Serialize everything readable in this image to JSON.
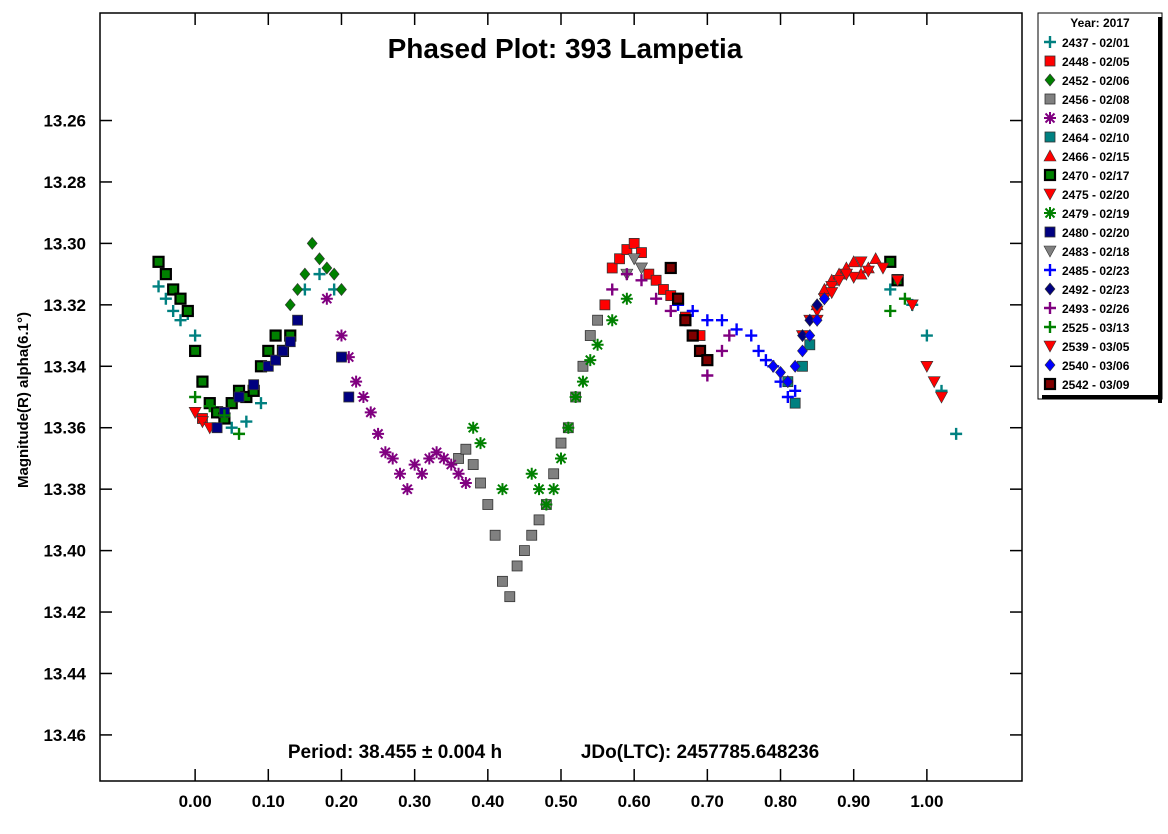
{
  "chart_data": {
    "type": "scatter",
    "title": "Phased Plot: 393 Lampetia",
    "xlabel": "",
    "ylabel": "Magnitude(R) alpha(6.1°)",
    "xlim": [
      -0.13,
      1.13
    ],
    "ylim": [
      13.475,
      13.225
    ],
    "y_inverted": true,
    "grid": false,
    "x_ticks": [
      0.0,
      0.1,
      0.2,
      0.3,
      0.4,
      0.5,
      0.6,
      0.7,
      0.8,
      0.9,
      1.0
    ],
    "x_tick_labels": [
      "0.00",
      "0.10",
      "0.20",
      "0.30",
      "0.40",
      "0.50",
      "0.60",
      "0.70",
      "0.80",
      "0.90",
      "1.00"
    ],
    "y_ticks": [
      13.26,
      13.28,
      13.3,
      13.32,
      13.34,
      13.36,
      13.38,
      13.4,
      13.42,
      13.44,
      13.46
    ],
    "y_tick_labels": [
      "13.26",
      "13.28",
      "13.30",
      "13.32",
      "13.34",
      "13.36",
      "13.38",
      "13.40",
      "13.42",
      "13.44",
      "13.46"
    ],
    "annotation": {
      "period": "Period: 38.455 ± 0.004 h",
      "epoch": "JDo(LTC): 2457785.648236"
    },
    "legend": {
      "title": "Year: 2017",
      "placement": "right-outside"
    },
    "series": [
      {
        "name": "2437 - 02/01",
        "color": "#008080",
        "marker": "plus",
        "x": [
          -0.05,
          -0.04,
          -0.03,
          -0.02,
          -0.01,
          0.0,
          0.01,
          0.03,
          0.05,
          0.07,
          0.09,
          0.15,
          0.17,
          0.19,
          0.95,
          0.98,
          1.0,
          1.02,
          1.04
        ],
        "y": [
          13.314,
          13.318,
          13.322,
          13.325,
          13.323,
          13.33,
          13.345,
          13.355,
          13.36,
          13.358,
          13.352,
          13.315,
          13.31,
          13.315,
          13.315,
          13.32,
          13.33,
          13.348,
          13.362
        ]
      },
      {
        "name": "2448 - 02/05",
        "color": "#ff0000",
        "marker": "square",
        "x": [
          0.01,
          0.56,
          0.57,
          0.58,
          0.59,
          0.6,
          0.61,
          0.62,
          0.63,
          0.64,
          0.65,
          0.67,
          0.69
        ],
        "y": [
          13.357,
          13.32,
          13.308,
          13.305,
          13.302,
          13.3,
          13.303,
          13.31,
          13.312,
          13.315,
          13.317,
          13.324,
          13.33
        ]
      },
      {
        "name": "2452 - 02/06",
        "color": "#008000",
        "marker": "diamond",
        "x": [
          0.13,
          0.14,
          0.15,
          0.16,
          0.17,
          0.18,
          0.19,
          0.2
        ],
        "y": [
          13.32,
          13.315,
          13.31,
          13.3,
          13.305,
          13.308,
          13.31,
          13.315
        ]
      },
      {
        "name": "2456 - 02/08",
        "color": "#808080",
        "marker": "square",
        "x": [
          0.36,
          0.37,
          0.38,
          0.39,
          0.4,
          0.41,
          0.42,
          0.43,
          0.44,
          0.45,
          0.46,
          0.47,
          0.48,
          0.49,
          0.5,
          0.51,
          0.52,
          0.53,
          0.54,
          0.55
        ],
        "y": [
          13.37,
          13.367,
          13.372,
          13.378,
          13.385,
          13.395,
          13.41,
          13.415,
          13.405,
          13.4,
          13.395,
          13.39,
          13.385,
          13.375,
          13.365,
          13.36,
          13.35,
          13.34,
          13.33,
          13.325
        ]
      },
      {
        "name": "2463 - 02/09",
        "color": "#800080",
        "marker": "asterisk",
        "x": [
          0.18,
          0.2,
          0.21,
          0.22,
          0.23,
          0.24,
          0.25,
          0.26,
          0.27,
          0.28,
          0.29,
          0.3,
          0.31,
          0.32,
          0.33,
          0.34,
          0.35,
          0.36,
          0.37
        ],
        "y": [
          13.318,
          13.33,
          13.337,
          13.345,
          13.35,
          13.355,
          13.362,
          13.368,
          13.37,
          13.375,
          13.38,
          13.372,
          13.375,
          13.37,
          13.368,
          13.37,
          13.372,
          13.375,
          13.378
        ]
      },
      {
        "name": "2464 - 02/10",
        "color": "#008080",
        "marker": "square",
        "x": [
          0.81,
          0.82,
          0.83,
          0.84
        ],
        "y": [
          13.345,
          13.352,
          13.34,
          13.333
        ]
      },
      {
        "name": "2466 - 02/15",
        "color": "#ff0000",
        "marker": "triangle-up",
        "x": [
          0.85,
          0.86,
          0.87,
          0.88,
          0.89,
          0.9,
          0.91,
          0.92,
          0.93
        ],
        "y": [
          13.32,
          13.315,
          13.312,
          13.31,
          13.308,
          13.306,
          13.31,
          13.308,
          13.305
        ]
      },
      {
        "name": "2470 - 02/17",
        "color": "#008000",
        "marker": "square-black",
        "x": [
          -0.05,
          -0.04,
          -0.03,
          -0.02,
          -0.01,
          0.0,
          0.01,
          0.02,
          0.03,
          0.04,
          0.05,
          0.06,
          0.07,
          0.08,
          0.09,
          0.1,
          0.11,
          0.12,
          0.13,
          0.95,
          0.96
        ],
        "y": [
          13.306,
          13.31,
          13.315,
          13.318,
          13.322,
          13.335,
          13.345,
          13.352,
          13.355,
          13.357,
          13.352,
          13.348,
          13.35,
          13.348,
          13.34,
          13.335,
          13.33,
          13.335,
          13.33,
          13.306,
          13.312
        ]
      },
      {
        "name": "2475 - 02/20",
        "color": "#ff0000",
        "marker": "triangle-down",
        "x": [
          0.0,
          0.01,
          0.02,
          0.83,
          0.84,
          0.85,
          0.86,
          0.87,
          0.88,
          0.89,
          0.9,
          0.92,
          0.94,
          0.96,
          0.98,
          1.0,
          1.01,
          1.02
        ],
        "y": [
          13.355,
          13.358,
          13.36,
          13.33,
          13.325,
          13.322,
          13.318,
          13.314,
          13.312,
          13.31,
          13.311,
          13.309,
          13.308,
          13.312,
          13.32,
          13.34,
          13.345,
          13.35
        ]
      },
      {
        "name": "2479 - 02/19",
        "color": "#008000",
        "marker": "asterisk",
        "x": [
          0.38,
          0.39,
          0.42,
          0.46,
          0.47,
          0.48,
          0.49,
          0.5,
          0.51,
          0.52,
          0.53,
          0.54,
          0.55,
          0.57,
          0.59
        ],
        "y": [
          13.36,
          13.365,
          13.38,
          13.375,
          13.38,
          13.385,
          13.38,
          13.37,
          13.36,
          13.35,
          13.345,
          13.338,
          13.333,
          13.325,
          13.318
        ]
      },
      {
        "name": "2480 - 02/20",
        "color": "#000080",
        "marker": "square",
        "x": [
          0.03,
          0.04,
          0.06,
          0.08,
          0.1,
          0.11,
          0.12,
          0.13,
          0.14,
          0.2,
          0.21
        ],
        "y": [
          13.36,
          13.355,
          13.35,
          13.346,
          13.34,
          13.338,
          13.335,
          13.332,
          13.325,
          13.337,
          13.35
        ]
      },
      {
        "name": "2483 - 02/18",
        "color": "#808080",
        "marker": "triangle-down",
        "x": [
          0.59,
          0.6,
          0.61
        ],
        "y": [
          13.31,
          13.305,
          13.308
        ]
      },
      {
        "name": "2485 - 02/23",
        "color": "#0000ff",
        "marker": "plus",
        "x": [
          0.66,
          0.68,
          0.7,
          0.72,
          0.74,
          0.76,
          0.77,
          0.78,
          0.79,
          0.8,
          0.81,
          0.82
        ],
        "y": [
          13.32,
          13.322,
          13.325,
          13.325,
          13.328,
          13.33,
          13.335,
          13.338,
          13.34,
          13.345,
          13.35,
          13.348
        ]
      },
      {
        "name": "2492 - 02/23",
        "color": "#000080",
        "marker": "diamond",
        "x": [
          0.83,
          0.84,
          0.85,
          0.86
        ],
        "y": [
          13.33,
          13.325,
          13.32,
          13.318
        ]
      },
      {
        "name": "2493 - 02/26",
        "color": "#800080",
        "marker": "plus",
        "x": [
          0.57,
          0.59,
          0.61,
          0.63,
          0.65,
          0.67,
          0.69,
          0.7,
          0.72,
          0.73
        ],
        "y": [
          13.315,
          13.31,
          13.312,
          13.318,
          13.322,
          13.325,
          13.335,
          13.343,
          13.335,
          13.33
        ]
      },
      {
        "name": "2525 - 03/13",
        "color": "#008000",
        "marker": "plus",
        "x": [
          0.0,
          0.02,
          0.04,
          0.06,
          0.95,
          0.97
        ],
        "y": [
          13.35,
          13.353,
          13.356,
          13.362,
          13.322,
          13.318
        ]
      },
      {
        "name": "2539 - 03/05",
        "color": "#ff0000",
        "marker": "triangle-down",
        "x": [
          0.85,
          0.87,
          0.89,
          0.91
        ],
        "y": [
          13.325,
          13.316,
          13.31,
          13.306
        ]
      },
      {
        "name": "2540 - 03/06",
        "color": "#0000ff",
        "marker": "diamond",
        "x": [
          0.79,
          0.8,
          0.81,
          0.82,
          0.83,
          0.84,
          0.85,
          0.86
        ],
        "y": [
          13.34,
          13.342,
          13.345,
          13.34,
          13.335,
          13.33,
          13.325,
          13.318
        ]
      },
      {
        "name": "2542 - 03/09",
        "color": "#800000",
        "marker": "square-black",
        "x": [
          0.65,
          0.66,
          0.67,
          0.68,
          0.69,
          0.7
        ],
        "y": [
          13.308,
          13.318,
          13.325,
          13.33,
          13.335,
          13.338
        ]
      }
    ]
  }
}
